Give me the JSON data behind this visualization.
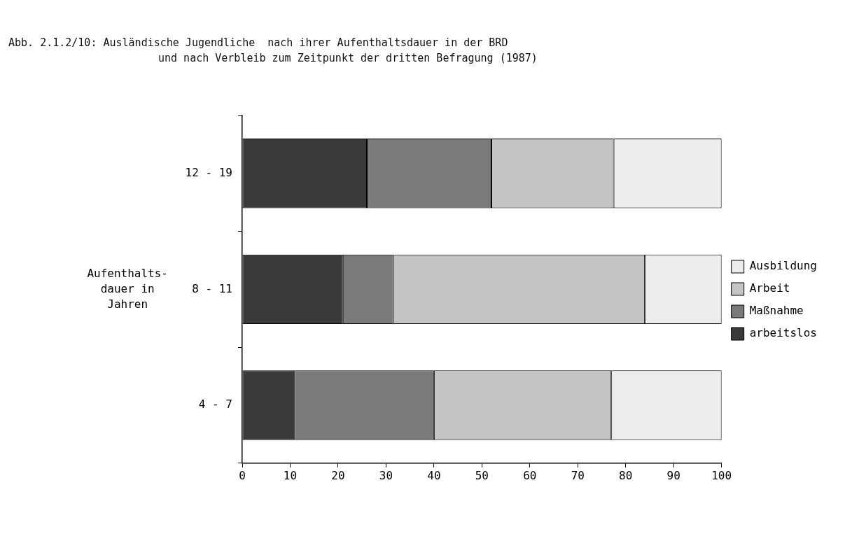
{
  "chart_data": {
    "type": "bar",
    "orientation": "horizontal",
    "stacked": true,
    "title": "Abb. 2.1.2/10: Ausländische Jugendliche  nach ihrer Aufenthaltsdauer in der BRD",
    "subtitle": "und nach Verbleib zum Zeitpunkt der dritten Befragung (1987)",
    "ylabel": "Aufenthalts-\ndauer in\nJahren",
    "categories": [
      "12 - 19",
      "8 - 11",
      "4 - 7"
    ],
    "series": [
      {
        "name": "arbeitslos",
        "color": "#3a3a3a",
        "values": [
          26,
          21,
          11
        ]
      },
      {
        "name": "Maßnahme",
        "color": "#7a7a7a",
        "values": [
          26,
          10.5,
          29
        ]
      },
      {
        "name": "Arbeit",
        "color": "#c4c4c4",
        "values": [
          25.5,
          52.5,
          37
        ]
      },
      {
        "name": "Ausbildung",
        "color": "#ececec",
        "values": [
          22.5,
          16,
          23
        ]
      }
    ],
    "xlim": [
      0,
      100
    ],
    "xticks": [
      0,
      10,
      20,
      30,
      40,
      50,
      60,
      70,
      80,
      90,
      100
    ],
    "legend": "right",
    "grid": false
  }
}
